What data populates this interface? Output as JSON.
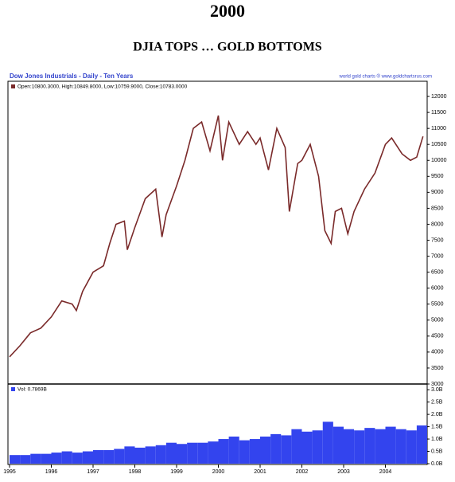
{
  "header": {
    "title": "2000",
    "subtitle": "DJIA TOPS … GOLD BOTTOMS"
  },
  "chart_data": [
    {
      "type": "line",
      "title": "Dow Jones Industrials - Daily - Ten Years",
      "source": "world gold charts ® www.goldchartsrus.com",
      "x": [
        1995.0,
        1995.25,
        1995.5,
        1995.75,
        1996.0,
        1996.25,
        1996.5,
        1996.6,
        1996.75,
        1997.0,
        1997.25,
        1997.4,
        1997.55,
        1997.75,
        1997.82,
        1998.0,
        1998.25,
        1998.5,
        1998.65,
        1998.75,
        1999.0,
        1999.2,
        1999.4,
        1999.6,
        1999.8,
        2000.0,
        2000.1,
        2000.25,
        2000.5,
        2000.7,
        2000.9,
        2001.0,
        2001.2,
        2001.4,
        2001.6,
        2001.7,
        2001.9,
        2002.0,
        2002.2,
        2002.4,
        2002.55,
        2002.7,
        2002.8,
        2002.95,
        2003.1,
        2003.25,
        2003.5,
        2003.75,
        2004.0,
        2004.15,
        2004.4,
        2004.6,
        2004.75,
        2004.9
      ],
      "series": [
        {
          "name": "Open:10800.3000, High:10849.8000, Low:10759.9000, Close:10783.0000",
          "color": "#7a2a2a",
          "values": [
            3850,
            4200,
            4600,
            4750,
            5100,
            5600,
            5500,
            5300,
            5900,
            6500,
            6700,
            7400,
            8000,
            8100,
            7200,
            7900,
            8800,
            9100,
            7600,
            8300,
            9200,
            10000,
            11000,
            11200,
            10300,
            11400,
            10000,
            11200,
            10500,
            10900,
            10500,
            10700,
            9700,
            11000,
            10400,
            8400,
            9900,
            10000,
            10500,
            9500,
            7800,
            7400,
            8400,
            8500,
            7700,
            8400,
            9100,
            9600,
            10500,
            10700,
            10200,
            10000,
            10100,
            10750
          ]
        }
      ],
      "xlim": [
        1995,
        2005
      ],
      "ylim": [
        3000,
        12450
      ],
      "yticks": [
        3000,
        3500,
        4000,
        4500,
        5000,
        5500,
        6000,
        6500,
        7000,
        7500,
        8000,
        8500,
        9000,
        9500,
        10000,
        10500,
        11000,
        11500,
        12000
      ]
    },
    {
      "type": "bar",
      "x": [
        1995.0,
        1995.25,
        1995.5,
        1995.75,
        1996.0,
        1996.25,
        1996.5,
        1996.75,
        1997.0,
        1997.25,
        1997.5,
        1997.75,
        1998.0,
        1998.25,
        1998.5,
        1998.75,
        1999.0,
        1999.25,
        1999.5,
        1999.75,
        2000.0,
        2000.25,
        2000.5,
        2000.75,
        2001.0,
        2001.25,
        2001.5,
        2001.75,
        2002.0,
        2002.25,
        2002.5,
        2002.75,
        2003.0,
        2003.25,
        2003.5,
        2003.75,
        2004.0,
        2004.25,
        2004.5,
        2004.75
      ],
      "series": [
        {
          "name": "Vol: 0.7869B",
          "color": "#3344ee",
          "values": [
            0.35,
            0.35,
            0.4,
            0.4,
            0.45,
            0.5,
            0.45,
            0.5,
            0.55,
            0.55,
            0.6,
            0.7,
            0.65,
            0.7,
            0.75,
            0.85,
            0.8,
            0.85,
            0.85,
            0.9,
            1.0,
            1.1,
            0.95,
            1.0,
            1.1,
            1.2,
            1.15,
            1.4,
            1.3,
            1.35,
            1.7,
            1.5,
            1.4,
            1.35,
            1.45,
            1.4,
            1.5,
            1.4,
            1.35,
            1.55
          ]
        }
      ],
      "xlim": [
        1995,
        2005
      ],
      "ylim": [
        0,
        3.2
      ],
      "xticks": [
        1995,
        1996,
        1997,
        1998,
        1999,
        2000,
        2001,
        2002,
        2003,
        2004
      ],
      "yticks": [
        {
          "value": 0,
          "label": "0.0B"
        },
        {
          "value": 0.5,
          "label": "0.5B"
        },
        {
          "value": 1,
          "label": "1.0B"
        },
        {
          "value": 1.5,
          "label": "1.5B"
        },
        {
          "value": 2,
          "label": "2.0B"
        },
        {
          "value": 2.5,
          "label": "2.5B"
        },
        {
          "value": 3,
          "label": "3.0B"
        }
      ]
    }
  ]
}
